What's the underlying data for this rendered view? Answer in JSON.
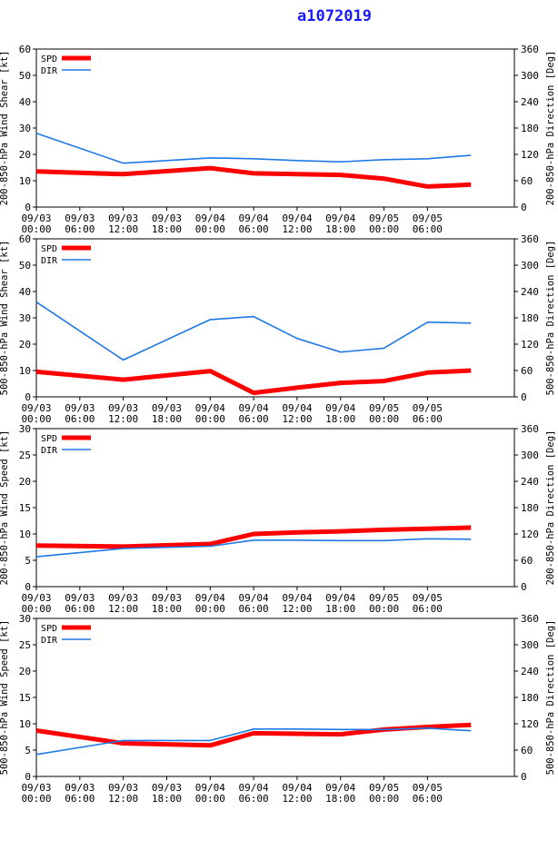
{
  "title": "a1072019",
  "chart_data": [
    {
      "type": "line",
      "ylabel_left": "200-850-hPa Wind Shear [kt]",
      "ylabel_right": "200-850-hPa Direction [Deg]",
      "ylim_left": [
        0,
        60
      ],
      "ylim_right": [
        0,
        360
      ],
      "yticks_left": [
        0,
        10,
        20,
        30,
        40,
        50,
        60
      ],
      "yticks_right": [
        0,
        60,
        120,
        180,
        240,
        300,
        360
      ],
      "x": [
        0,
        12,
        24,
        30,
        36,
        42,
        48,
        54,
        60
      ],
      "series": [
        {
          "name": "SPD",
          "axis": "left",
          "values": [
            13.5,
            12.5,
            14.8,
            12.8,
            12.5,
            12.2,
            10.8,
            7.8,
            8.5
          ]
        },
        {
          "name": "DIR",
          "axis": "right",
          "values": [
            168,
            100,
            112,
            110,
            106,
            103,
            108,
            110,
            118
          ]
        }
      ]
    },
    {
      "type": "line",
      "ylabel_left": "500-850-hPa Wind Shear [kt]",
      "ylabel_right": "500-850-hPa Direction [Deg]",
      "ylim_left": [
        0,
        60
      ],
      "ylim_right": [
        0,
        360
      ],
      "yticks_left": [
        0,
        10,
        20,
        30,
        40,
        50,
        60
      ],
      "yticks_right": [
        0,
        60,
        120,
        180,
        240,
        300,
        360
      ],
      "x": [
        0,
        12,
        24,
        30,
        36,
        42,
        48,
        54,
        60
      ],
      "series": [
        {
          "name": "SPD",
          "axis": "left",
          "values": [
            9.5,
            6.5,
            9.8,
            1.5,
            3.5,
            5.3,
            6.0,
            9.2,
            10.0
          ]
        },
        {
          "name": "DIR",
          "axis": "right",
          "values": [
            216,
            84,
            176,
            183,
            133,
            102,
            111,
            170,
            168
          ]
        }
      ]
    },
    {
      "type": "line",
      "ylabel_left": "200-850-hPa Wind Speed [kt]",
      "ylabel_right": "200-850-hPa Direction [Deg]",
      "ylim_left": [
        0,
        30
      ],
      "ylim_right": [
        0,
        360
      ],
      "yticks_left": [
        0,
        5,
        10,
        15,
        20,
        25,
        30
      ],
      "yticks_right": [
        0,
        60,
        120,
        180,
        240,
        300,
        360
      ],
      "x": [
        0,
        12,
        24,
        30,
        36,
        42,
        48,
        54,
        60
      ],
      "series": [
        {
          "name": "SPD",
          "axis": "left",
          "values": [
            7.8,
            7.6,
            8.1,
            10.0,
            10.3,
            10.5,
            10.8,
            11.0,
            11.2
          ]
        },
        {
          "name": "DIR",
          "axis": "right",
          "values": [
            68,
            87,
            92,
            106,
            106,
            105,
            105,
            109,
            108
          ]
        }
      ]
    },
    {
      "type": "line",
      "ylabel_left": "500-850-hPa Wind Speed [kt]",
      "ylabel_right": "500-850-hPa Direction [Deg]",
      "ylim_left": [
        0,
        30
      ],
      "ylim_right": [
        0,
        360
      ],
      "yticks_left": [
        0,
        5,
        10,
        15,
        20,
        25,
        30
      ],
      "yticks_right": [
        0,
        60,
        120,
        180,
        240,
        300,
        360
      ],
      "x": [
        0,
        12,
        24,
        30,
        36,
        42,
        48,
        54,
        60
      ],
      "series": [
        {
          "name": "SPD",
          "axis": "left",
          "values": [
            8.7,
            6.3,
            5.9,
            8.2,
            8.1,
            8.0,
            8.9,
            9.4,
            9.8
          ]
        },
        {
          "name": "DIR",
          "axis": "right",
          "values": [
            50,
            82,
            82,
            108,
            108,
            107,
            107,
            110,
            104
          ]
        }
      ]
    }
  ],
  "x_tick_labels": [
    [
      "09/03",
      "00:00"
    ],
    [
      "09/03",
      "06:00"
    ],
    [
      "09/03",
      "12:00"
    ],
    [
      "09/03",
      "18:00"
    ],
    [
      "09/04",
      "00:00"
    ],
    [
      "09/04",
      "06:00"
    ],
    [
      "09/04",
      "12:00"
    ],
    [
      "09/04",
      "18:00"
    ],
    [
      "09/05",
      "00:00"
    ],
    [
      "09/05",
      "06:00"
    ]
  ],
  "x_tick_hours": [
    0,
    6,
    12,
    18,
    24,
    30,
    36,
    42,
    48,
    54
  ],
  "legend": [
    {
      "name": "SPD",
      "color": "#ff0000"
    },
    {
      "name": "DIR",
      "color": "#1e78e6"
    }
  ],
  "colors": {
    "spd": "#ff0000",
    "dir": "#1e78e6",
    "axis": "#000000"
  }
}
